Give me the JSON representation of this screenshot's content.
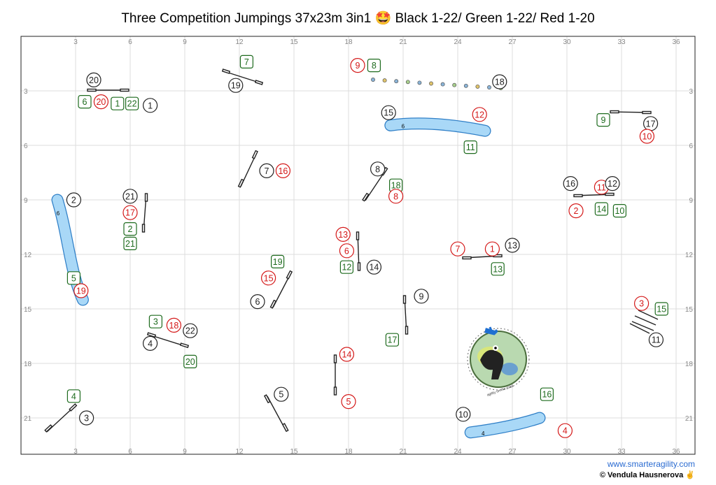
{
  "title": "Three Competition Jumpings 37x23m 3in1 🤩  Black 1-22/ Green 1-22/ Red 1-20",
  "footer": {
    "website": "www.smarteragility.com",
    "copyright": "© Vendula Hausnerova ✌️"
  },
  "grid": {
    "x_ticks": [
      "3",
      "6",
      "9",
      "12",
      "15",
      "18",
      "21",
      "24",
      "27",
      "30",
      "33",
      "36"
    ],
    "y_ticks": [
      "3",
      "6",
      "9",
      "12",
      "15",
      "18",
      "21"
    ]
  },
  "colors": {
    "black": "#222222",
    "green": "#1e6b1e",
    "red": "#d41818",
    "tunnel": "#a9d8f7",
    "tunnel_edge": "#2f7fc7"
  },
  "tunnels": [
    {
      "label": "6",
      "x": [
        2.0,
        2.6,
        2.7,
        3.4
      ],
      "y": [
        9.0,
        11.0,
        13.0,
        14.5
      ]
    },
    {
      "label": "6",
      "x": [
        20.3,
        22.5,
        25.5
      ],
      "y": [
        4.9,
        4.6,
        5.2
      ]
    },
    {
      "label": "4",
      "x": [
        24.7,
        27.0,
        28.5
      ],
      "y": [
        21.8,
        21.5,
        21.0
      ]
    }
  ],
  "logo_text": "agility on the road",
  "markers": [
    {
      "n": "20",
      "c": "black",
      "x": 4.0,
      "y": 2.4
    },
    {
      "n": "19",
      "c": "black",
      "x": 11.8,
      "y": 2.7
    },
    {
      "n": "6",
      "c": "green",
      "x": 3.5,
      "y": 3.6
    },
    {
      "n": "20",
      "c": "red",
      "x": 4.4,
      "y": 3.6
    },
    {
      "n": "1",
      "c": "green",
      "x": 5.3,
      "y": 3.7
    },
    {
      "n": "22",
      "c": "green",
      "x": 6.1,
      "y": 3.7
    },
    {
      "n": "1",
      "c": "black",
      "x": 7.1,
      "y": 3.8
    },
    {
      "n": "7",
      "c": "green",
      "x": 12.4,
      "y": 1.4
    },
    {
      "n": "9",
      "c": "red",
      "x": 18.5,
      "y": 1.6
    },
    {
      "n": "8",
      "c": "green",
      "x": 19.4,
      "y": 1.6
    },
    {
      "n": "18",
      "c": "black",
      "x": 26.3,
      "y": 2.5
    },
    {
      "n": "15",
      "c": "black",
      "x": 20.2,
      "y": 4.2
    },
    {
      "n": "12",
      "c": "red",
      "x": 25.2,
      "y": 4.3
    },
    {
      "n": "11",
      "c": "green",
      "x": 24.7,
      "y": 6.1
    },
    {
      "n": "9",
      "c": "green",
      "x": 32.0,
      "y": 4.6
    },
    {
      "n": "17",
      "c": "black",
      "x": 34.6,
      "y": 4.8
    },
    {
      "n": "10",
      "c": "red",
      "x": 34.4,
      "y": 5.5
    },
    {
      "n": "2",
      "c": "black",
      "x": 2.9,
      "y": 9.0
    },
    {
      "n": "21",
      "c": "black",
      "x": 6.0,
      "y": 8.8
    },
    {
      "n": "17",
      "c": "red",
      "x": 6.0,
      "y": 9.7
    },
    {
      "n": "2",
      "c": "green",
      "x": 6.0,
      "y": 10.6
    },
    {
      "n": "21",
      "c": "green",
      "x": 6.0,
      "y": 11.4
    },
    {
      "n": "7",
      "c": "black",
      "x": 13.5,
      "y": 7.4
    },
    {
      "n": "16",
      "c": "red",
      "x": 14.4,
      "y": 7.4
    },
    {
      "n": "8",
      "c": "black",
      "x": 19.6,
      "y": 7.3
    },
    {
      "n": "18",
      "c": "green",
      "x": 20.6,
      "y": 8.2
    },
    {
      "n": "8",
      "c": "red",
      "x": 20.6,
      "y": 8.8
    },
    {
      "n": "16",
      "c": "black",
      "x": 30.2,
      "y": 8.1
    },
    {
      "n": "11",
      "c": "red",
      "x": 31.9,
      "y": 8.3
    },
    {
      "n": "12",
      "c": "black",
      "x": 32.5,
      "y": 8.1
    },
    {
      "n": "2",
      "c": "red",
      "x": 30.5,
      "y": 9.6
    },
    {
      "n": "14",
      "c": "green",
      "x": 31.9,
      "y": 9.5
    },
    {
      "n": "10",
      "c": "green",
      "x": 32.9,
      "y": 9.6
    },
    {
      "n": "13",
      "c": "red",
      "x": 17.7,
      "y": 10.9
    },
    {
      "n": "6",
      "c": "red",
      "x": 17.9,
      "y": 11.8
    },
    {
      "n": "12",
      "c": "green",
      "x": 17.9,
      "y": 12.7
    },
    {
      "n": "14",
      "c": "black",
      "x": 19.4,
      "y": 12.7
    },
    {
      "n": "7",
      "c": "red",
      "x": 24.0,
      "y": 11.7
    },
    {
      "n": "1",
      "c": "red",
      "x": 25.9,
      "y": 11.7
    },
    {
      "n": "13",
      "c": "black",
      "x": 27.0,
      "y": 11.5
    },
    {
      "n": "13",
      "c": "green",
      "x": 26.2,
      "y": 12.8
    },
    {
      "n": "5",
      "c": "green",
      "x": 2.9,
      "y": 13.3
    },
    {
      "n": "19",
      "c": "red",
      "x": 3.3,
      "y": 14.0
    },
    {
      "n": "19",
      "c": "green",
      "x": 14.1,
      "y": 12.4
    },
    {
      "n": "15",
      "c": "red",
      "x": 13.6,
      "y": 13.3
    },
    {
      "n": "6",
      "c": "black",
      "x": 13.0,
      "y": 14.6
    },
    {
      "n": "9",
      "c": "black",
      "x": 22.0,
      "y": 14.3
    },
    {
      "n": "17",
      "c": "green",
      "x": 20.4,
      "y": 16.7
    },
    {
      "n": "3",
      "c": "green",
      "x": 7.4,
      "y": 15.7
    },
    {
      "n": "18",
      "c": "red",
      "x": 8.4,
      "y": 15.9
    },
    {
      "n": "22",
      "c": "black",
      "x": 9.3,
      "y": 16.2
    },
    {
      "n": "4",
      "c": "black",
      "x": 7.1,
      "y": 16.9
    },
    {
      "n": "20",
      "c": "green",
      "x": 9.3,
      "y": 17.9
    },
    {
      "n": "14",
      "c": "red",
      "x": 17.9,
      "y": 17.5
    },
    {
      "n": "3",
      "c": "red",
      "x": 34.1,
      "y": 14.7
    },
    {
      "n": "15",
      "c": "green",
      "x": 35.2,
      "y": 15.0
    },
    {
      "n": "11",
      "c": "black",
      "x": 34.9,
      "y": 16.7
    },
    {
      "n": "4",
      "c": "green",
      "x": 2.9,
      "y": 19.8
    },
    {
      "n": "3",
      "c": "black",
      "x": 3.6,
      "y": 21.0
    },
    {
      "n": "5",
      "c": "black",
      "x": 14.3,
      "y": 19.7
    },
    {
      "n": "5",
      "c": "red",
      "x": 18.0,
      "y": 20.1
    },
    {
      "n": "16",
      "c": "green",
      "x": 28.9,
      "y": 19.7
    },
    {
      "n": "10",
      "c": "black",
      "x": 24.3,
      "y": 20.8
    },
    {
      "n": "4",
      "c": "red",
      "x": 29.9,
      "y": 21.7
    }
  ]
}
